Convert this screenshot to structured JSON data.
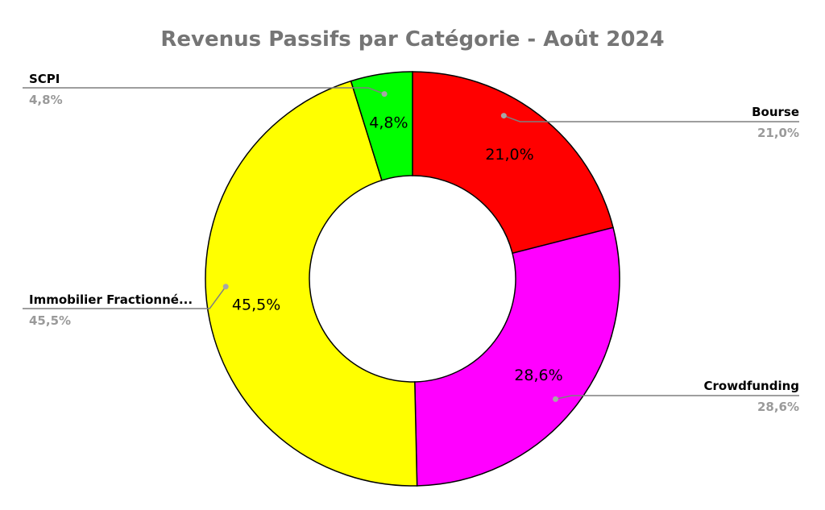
{
  "chart_data": {
    "type": "pie",
    "title": "Revenus Passifs par Catégorie - Août 2024",
    "donut": true,
    "start_angle_deg": 0,
    "direction": "clockwise",
    "slices": [
      {
        "name": "Bourse",
        "value": 21.0,
        "label": "21,0%",
        "color": "#ff0000"
      },
      {
        "name": "Crowdfunding",
        "value": 28.6,
        "label": "28,6%",
        "color": "#ff00ff"
      },
      {
        "name": "Immobilier Fractionné...",
        "value": 45.5,
        "label": "45,5%",
        "color": "#ffff00"
      },
      {
        "name": "SCPI",
        "value": 4.8,
        "label": "4,8%",
        "color": "#00ff00"
      }
    ],
    "legend": "callouts"
  }
}
